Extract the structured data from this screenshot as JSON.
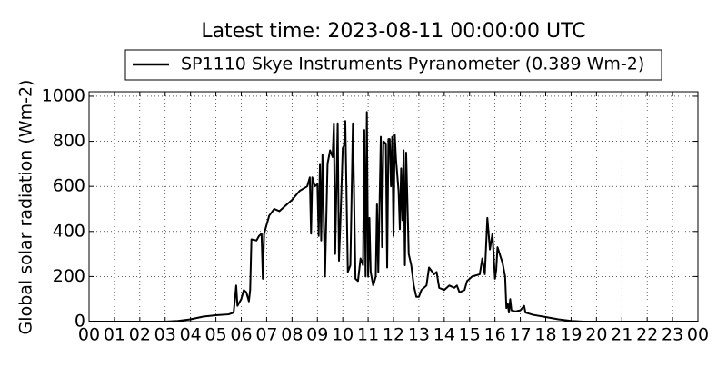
{
  "chart_data": {
    "type": "line",
    "title": "Latest time: 2023-08-11 00:00:00 UTC",
    "y_label": "Global solar radiation (Wm-2)",
    "grid": true,
    "legend": "top",
    "xlim": [
      0,
      24
    ],
    "ylim": [
      0,
      1020
    ],
    "yticks": [
      0,
      200,
      400,
      600,
      800,
      1000
    ],
    "xticks": [
      {
        "value": 0,
        "label": "00"
      },
      {
        "value": 1,
        "label": "01"
      },
      {
        "value": 2,
        "label": "02"
      },
      {
        "value": 3,
        "label": "03"
      },
      {
        "value": 4,
        "label": "04"
      },
      {
        "value": 5,
        "label": "05"
      },
      {
        "value": 6,
        "label": "06"
      },
      {
        "value": 7,
        "label": "07"
      },
      {
        "value": 8,
        "label": "08"
      },
      {
        "value": 9,
        "label": "09"
      },
      {
        "value": 10,
        "label": "10"
      },
      {
        "value": 11,
        "label": "11"
      },
      {
        "value": 12,
        "label": "12"
      },
      {
        "value": 13,
        "label": "13"
      },
      {
        "value": 14,
        "label": "14"
      },
      {
        "value": 15,
        "label": "15"
      },
      {
        "value": 16,
        "label": "16"
      },
      {
        "value": 17,
        "label": "17"
      },
      {
        "value": 18,
        "label": "18"
      },
      {
        "value": 19,
        "label": "19"
      },
      {
        "value": 20,
        "label": "20"
      },
      {
        "value": 21,
        "label": "21"
      },
      {
        "value": 22,
        "label": "22"
      },
      {
        "value": 23,
        "label": "23"
      },
      {
        "value": 24,
        "label": "00"
      }
    ],
    "x": [
      0,
      3,
      3.5,
      4,
      4.5,
      5,
      5.5,
      5.7,
      5.8,
      5.85,
      6.0,
      6.1,
      6.2,
      6.3,
      6.35,
      6.4,
      6.6,
      6.7,
      6.8,
      6.85,
      6.9,
      7.1,
      7.3,
      7.5,
      7.8,
      8.0,
      8.3,
      8.6,
      8.7,
      8.75,
      8.8,
      8.9,
      9.0,
      9.05,
      9.1,
      9.15,
      9.2,
      9.3,
      9.4,
      9.5,
      9.6,
      9.65,
      9.7,
      9.8,
      9.85,
      9.9,
      10.0,
      10.05,
      10.1,
      10.2,
      10.3,
      10.4,
      10.5,
      10.6,
      10.7,
      10.8,
      10.85,
      10.9,
      10.95,
      11.0,
      11.05,
      11.1,
      11.2,
      11.3,
      11.35,
      11.4,
      11.5,
      11.55,
      11.6,
      11.7,
      11.75,
      11.8,
      11.85,
      11.9,
      11.95,
      12.0,
      12.05,
      12.1,
      12.2,
      12.25,
      12.3,
      12.35,
      12.4,
      12.45,
      12.5,
      12.6,
      12.7,
      12.8,
      12.9,
      13.0,
      13.1,
      13.3,
      13.4,
      13.6,
      13.7,
      13.8,
      14.0,
      14.2,
      14.4,
      14.5,
      14.6,
      14.8,
      14.9,
      15.1,
      15.4,
      15.5,
      15.6,
      15.7,
      15.8,
      15.9,
      16.0,
      16.05,
      16.1,
      16.3,
      16.4,
      16.45,
      16.5,
      16.55,
      16.6,
      16.65,
      16.8,
      17.0,
      17.15,
      17.2,
      17.5,
      18,
      18.5,
      19,
      19.5,
      24
    ],
    "series": [
      {
        "name": "SP1110 Skye Instruments Pyranometer (0.389 Wm-2)",
        "color": "#000000",
        "values": [
          0,
          0,
          3,
          10,
          22,
          28,
          32,
          40,
          160,
          70,
          100,
          140,
          130,
          90,
          140,
          365,
          360,
          380,
          390,
          190,
          390,
          470,
          500,
          490,
          520,
          540,
          580,
          600,
          640,
          390,
          640,
          600,
          610,
          380,
          700,
          360,
          740,
          200,
          700,
          760,
          730,
          880,
          300,
          880,
          270,
          420,
          770,
          780,
          890,
          220,
          250,
          880,
          190,
          180,
          280,
          250,
          850,
          200,
          930,
          200,
          460,
          220,
          160,
          200,
          520,
          220,
          820,
          330,
          800,
          790,
          240,
          810,
          810,
          600,
          820,
          380,
          830,
          720,
          580,
          410,
          680,
          450,
          760,
          250,
          750,
          300,
          250,
          160,
          110,
          110,
          140,
          160,
          240,
          210,
          220,
          150,
          140,
          160,
          150,
          160,
          130,
          140,
          180,
          200,
          210,
          280,
          210,
          460,
          320,
          390,
          190,
          230,
          330,
          260,
          200,
          60,
          80,
          40,
          100,
          50,
          45,
          50,
          70,
          40,
          30,
          20,
          10,
          3,
          0,
          0
        ]
      }
    ]
  }
}
